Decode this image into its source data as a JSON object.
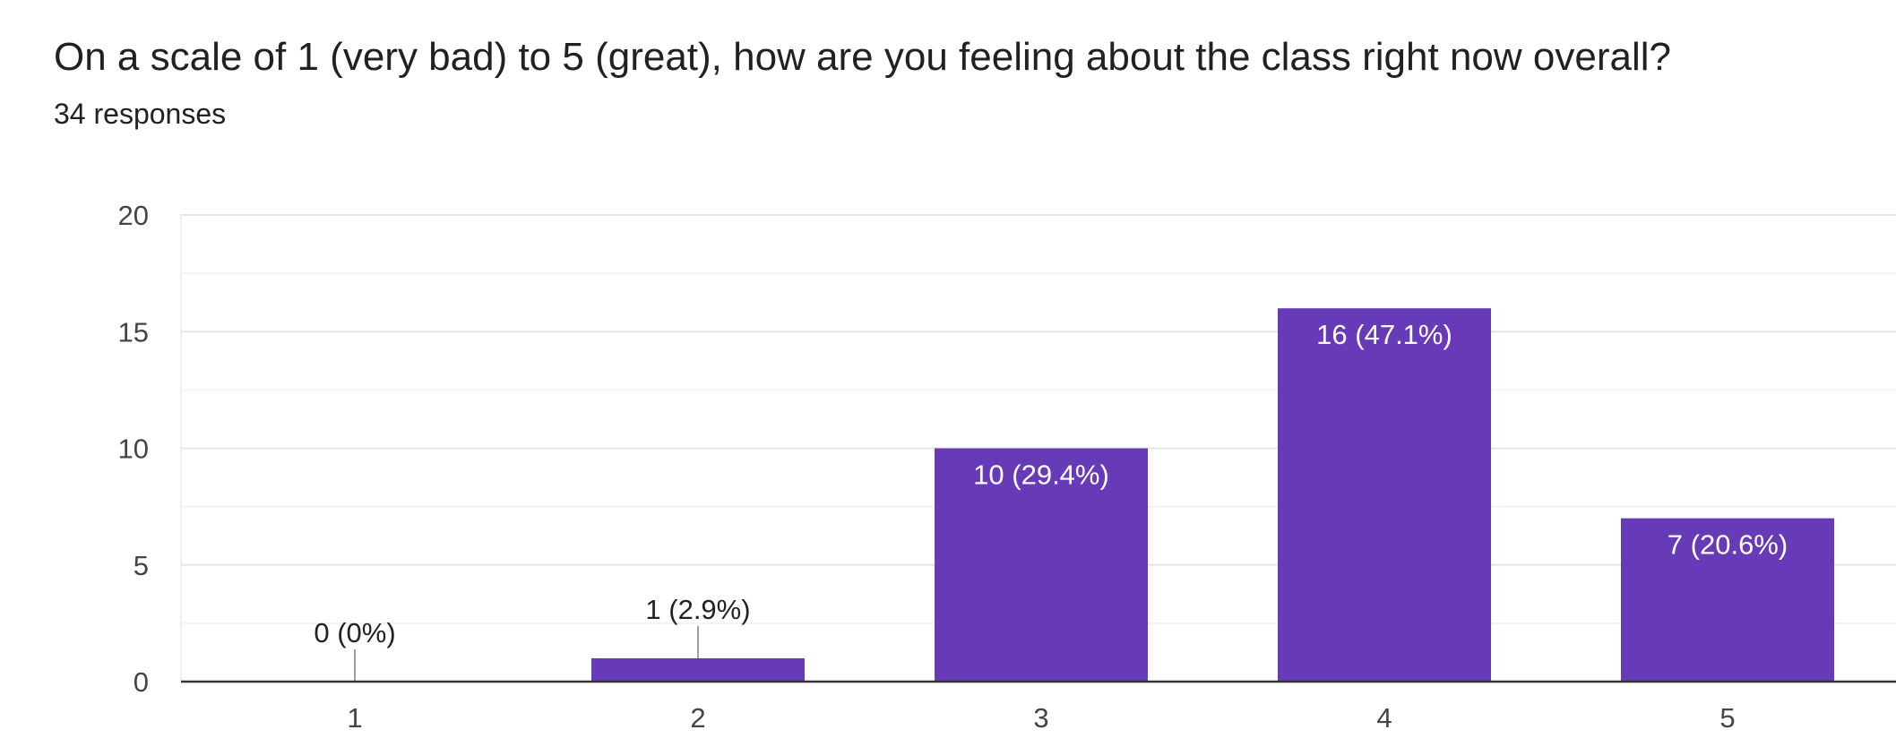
{
  "question": {
    "title": "On a scale of 1 (very bad) to 5 (great), how are you feeling about the class right now overall?",
    "responses": "34 responses"
  },
  "colors": {
    "bar": "#673ab7",
    "grid": "#eeeeee",
    "baseline": "#333333",
    "tick_text": "#444444",
    "label_inside": "#ffffff",
    "label_outside": "#222222",
    "leader": "#9e9e9e"
  },
  "chart_data": {
    "type": "bar",
    "title": "",
    "xlabel": "",
    "ylabel": "",
    "categories": [
      "1",
      "2",
      "3",
      "4",
      "5"
    ],
    "values": [
      0,
      1,
      10,
      16,
      7
    ],
    "data_labels": [
      "0 (0%)",
      "1 (2.9%)",
      "10 (29.4%)",
      "16 (47.1%)",
      "7 (20.6%)"
    ],
    "ylim": [
      0,
      20
    ],
    "yticks": [
      0,
      5,
      10,
      15,
      20
    ],
    "grid": true,
    "legend": "none"
  }
}
